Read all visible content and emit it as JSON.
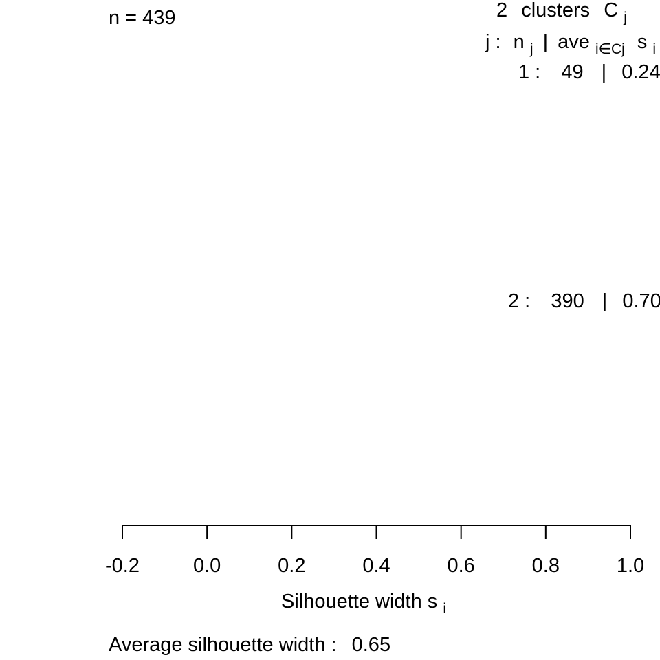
{
  "chart_data": {
    "type": "bar",
    "orientation": "horizontal",
    "n_label": "n = 439",
    "legend": {
      "title_prefix": "2",
      "title_word": "clusters",
      "title_symbol": "C",
      "title_symbol_sub": "j",
      "header": {
        "j_label": "j :",
        "n_symbol": "n",
        "n_sub": "j",
        "sep": "|",
        "ave": "ave",
        "ave_sub": "i∈Cj",
        "s_symbol": "s",
        "s_sub": "i"
      }
    },
    "clusters": [
      {
        "id": 1,
        "label": "1 :",
        "n": 49,
        "n_text": "49",
        "sep": "|",
        "avg_text": "0.24",
        "avg": 0.24
      },
      {
        "id": 2,
        "label": "2 :",
        "n": 390,
        "n_text": "390",
        "sep": "|",
        "avg_text": "0.70",
        "avg": 0.7
      }
    ],
    "xlim": [
      -0.2,
      1.0
    ],
    "xticks": [
      {
        "value": -0.2,
        "label": "-0.2"
      },
      {
        "value": 0.0,
        "label": "0.0"
      },
      {
        "value": 0.2,
        "label": "0.2"
      },
      {
        "value": 0.4,
        "label": "0.4"
      },
      {
        "value": 0.6,
        "label": "0.6"
      },
      {
        "value": 0.8,
        "label": "0.8"
      },
      {
        "value": 1.0,
        "label": "1.0"
      }
    ],
    "xlabel": {
      "main": "Silhouette width s",
      "sub": "i"
    },
    "footer": {
      "label": "Average silhouette width :",
      "value": "0.65"
    },
    "grid": false
  }
}
